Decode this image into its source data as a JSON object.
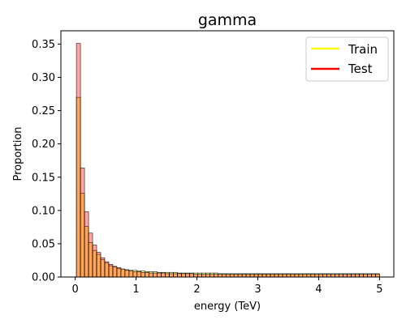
{
  "chart_data": {
    "type": "bar",
    "title": "gamma",
    "xlabel": "energy (TeV)",
    "ylabel": "Proportion",
    "xlim": [
      -0.235,
      5.235
    ],
    "ylim": [
      0,
      0.37
    ],
    "xticks": [
      {
        "value": 0,
        "label": "0"
      },
      {
        "value": 1,
        "label": "1"
      },
      {
        "value": 2,
        "label": "2"
      },
      {
        "value": 3,
        "label": "3"
      },
      {
        "value": 4,
        "label": "4"
      },
      {
        "value": 5,
        "label": "5"
      }
    ],
    "yticks": [
      {
        "value": 0.0,
        "label": "0.00"
      },
      {
        "value": 0.05,
        "label": "0.05"
      },
      {
        "value": 0.1,
        "label": "0.10"
      },
      {
        "value": 0.15,
        "label": "0.15"
      },
      {
        "value": 0.2,
        "label": "0.20"
      },
      {
        "value": 0.25,
        "label": "0.25"
      },
      {
        "value": 0.3,
        "label": "0.30"
      },
      {
        "value": 0.35,
        "label": "0.35"
      }
    ],
    "bin_start": 0.02,
    "bin_width": 0.0664,
    "legend_position": "upper-right",
    "series": [
      {
        "name": "Train",
        "fill": "#ffff00",
        "line_color": "#ffff00",
        "values": [
          0.27,
          0.126,
          0.076,
          0.052,
          0.04,
          0.034,
          0.026,
          0.021,
          0.017,
          0.015,
          0.013,
          0.012,
          0.011,
          0.01,
          0.01,
          0.009,
          0.009,
          0.008,
          0.008,
          0.008,
          0.007,
          0.007,
          0.007,
          0.007,
          0.007,
          0.006,
          0.006,
          0.006,
          0.006,
          0.006,
          0.006,
          0.006,
          0.006,
          0.006,
          0.006,
          0.005,
          0.005,
          0.005,
          0.005,
          0.005,
          0.005,
          0.005,
          0.005,
          0.005,
          0.005,
          0.005,
          0.005,
          0.005,
          0.005,
          0.005,
          0.005,
          0.005,
          0.005,
          0.005,
          0.005,
          0.005,
          0.005,
          0.005,
          0.005,
          0.005,
          0.005,
          0.005,
          0.005,
          0.005,
          0.005,
          0.005,
          0.005,
          0.005,
          0.005,
          0.005,
          0.005,
          0.005,
          0.005,
          0.005,
          0.005
        ]
      },
      {
        "name": "Test",
        "fill": "#ff0000",
        "line_color": "#ff0000",
        "values": [
          0.351,
          0.164,
          0.098,
          0.066,
          0.048,
          0.037,
          0.029,
          0.023,
          0.019,
          0.016,
          0.014,
          0.012,
          0.01,
          0.009,
          0.008,
          0.008,
          0.007,
          0.007,
          0.006,
          0.006,
          0.006,
          0.006,
          0.005,
          0.005,
          0.005,
          0.005,
          0.005,
          0.005,
          0.005,
          0.004,
          0.004,
          0.004,
          0.004,
          0.004,
          0.004,
          0.004,
          0.004,
          0.004,
          0.004,
          0.004,
          0.004,
          0.004,
          0.004,
          0.004,
          0.004,
          0.004,
          0.004,
          0.004,
          0.004,
          0.004,
          0.004,
          0.004,
          0.004,
          0.004,
          0.004,
          0.004,
          0.004,
          0.004,
          0.004,
          0.004,
          0.004,
          0.004,
          0.004,
          0.004,
          0.004,
          0.004,
          0.004,
          0.004,
          0.004,
          0.004,
          0.004,
          0.004,
          0.004,
          0.004,
          0.004
        ]
      }
    ]
  }
}
